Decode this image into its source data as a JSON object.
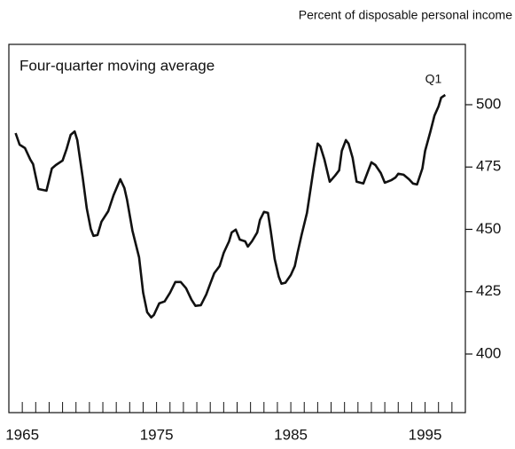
{
  "chart_data": {
    "type": "line",
    "title": "Four-quarter moving average",
    "y_axis_label": "Percent of disposable personal income",
    "annotation": "Q1",
    "x": [
      1964.5,
      1964.8,
      1965.2,
      1965.6,
      1965.8,
      1966.2,
      1966.8,
      1967.2,
      1967.5,
      1968.0,
      1968.3,
      1968.6,
      1968.9,
      1969.1,
      1969.5,
      1969.8,
      1970.1,
      1970.3,
      1970.6,
      1970.9,
      1971.4,
      1971.8,
      1972.3,
      1972.6,
      1972.8,
      1973.2,
      1973.7,
      1974.0,
      1974.3,
      1974.6,
      1974.8,
      1975.2,
      1975.6,
      1976.0,
      1976.4,
      1976.8,
      1977.2,
      1977.6,
      1977.9,
      1978.3,
      1978.7,
      1979.0,
      1979.3,
      1979.7,
      1980.0,
      1980.4,
      1980.6,
      1980.9,
      1981.2,
      1981.6,
      1981.8,
      1982.1,
      1982.5,
      1982.7,
      1983.0,
      1983.3,
      1983.5,
      1983.8,
      1984.1,
      1984.3,
      1984.6,
      1985.0,
      1985.3,
      1985.5,
      1985.8,
      1986.2,
      1986.4,
      1986.7,
      1987.0,
      1987.2,
      1987.5,
      1987.9,
      1988.3,
      1988.6,
      1988.8,
      1989.1,
      1989.3,
      1989.6,
      1989.9,
      1990.4,
      1990.7,
      1991.0,
      1991.3,
      1991.7,
      1992.0,
      1992.5,
      1992.8,
      1993.0,
      1993.4,
      1993.8,
      1994.1,
      1994.4,
      1994.8,
      1995.0,
      1995.4,
      1995.7,
      1996.0,
      1996.2,
      1996.5
    ],
    "series": [
      {
        "color": "#111111",
        "values": [
          488.6,
          484,
          482.6,
          478,
          476.2,
          466.2,
          465.5,
          474.4,
          475.8,
          477.6,
          482.2,
          487.9,
          489.3,
          485.8,
          470.8,
          458.4,
          450.2,
          447.4,
          447.7,
          453.1,
          457.3,
          463.7,
          470.1,
          466.6,
          461.9,
          449.5,
          438.8,
          424.6,
          416.8,
          414.7,
          415.7,
          420.3,
          421.1,
          424.6,
          428.9,
          428.9,
          426.4,
          421.8,
          419.3,
          419.6,
          423.9,
          428.2,
          432.4,
          435.3,
          440.6,
          445.2,
          448.8,
          449.9,
          445.9,
          445.2,
          443.1,
          445.2,
          448.8,
          453.8,
          457.0,
          456.6,
          449.5,
          438.1,
          431.0,
          428.2,
          428.6,
          431.7,
          435.3,
          440.6,
          447.7,
          456.6,
          463.7,
          474.4,
          484.4,
          483.3,
          478.0,
          469.1,
          471.6,
          473.7,
          481.5,
          485.8,
          484.4,
          478.7,
          469.1,
          468.4,
          472.6,
          476.9,
          475.8,
          472.6,
          468.7,
          469.8,
          470.8,
          472.3,
          471.9,
          470.1,
          468.4,
          468.0,
          474.4,
          481.5,
          489.3,
          495.7,
          499.3,
          502.8,
          503.9
        ]
      }
    ],
    "xlim": [
      1964,
      1998
    ],
    "xticks": [
      1965,
      1975,
      1985,
      1995
    ],
    "xminorticks": [
      1964,
      1965,
      1966,
      1967,
      1968,
      1969,
      1970,
      1971,
      1972,
      1973,
      1974,
      1975,
      1976,
      1977,
      1978,
      1979,
      1980,
      1981,
      1982,
      1983,
      1984,
      1985,
      1986,
      1987,
      1988,
      1989,
      1990,
      1991,
      1992,
      1993,
      1994,
      1995,
      1996,
      1997
    ],
    "ylim": [
      376.5,
      524.2
    ],
    "yticks": [
      400,
      425,
      450,
      475,
      500
    ],
    "y_axis_side": "right"
  }
}
